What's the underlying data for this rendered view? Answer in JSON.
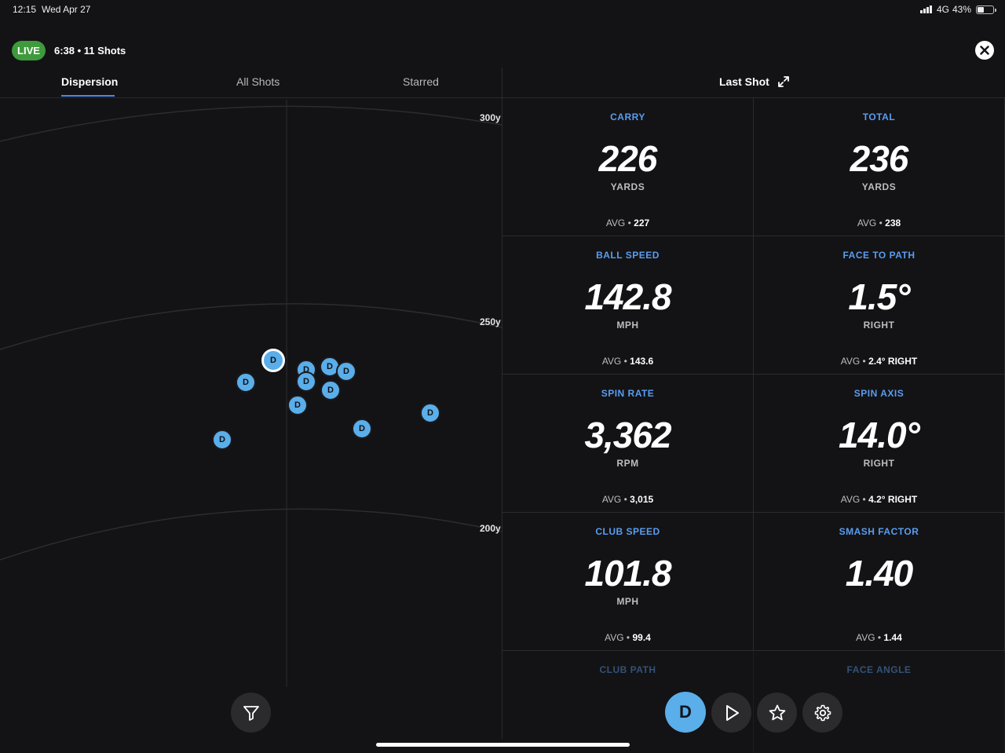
{
  "status_bar": {
    "time": "12:15",
    "date": "Wed Apr 27",
    "network": "4G",
    "battery_text": "43%",
    "battery_level": 0.43
  },
  "session": {
    "live_label": "LIVE",
    "info": "6:38 • 11 Shots",
    "live_color": "#3e9a3c"
  },
  "tabs": [
    {
      "label": "Dispersion",
      "active": true
    },
    {
      "label": "All Shots",
      "active": false
    },
    {
      "label": "Starred",
      "active": false
    }
  ],
  "last_shot": {
    "title": "Last Shot",
    "expand_icon": "expand-icon"
  },
  "dispersion": {
    "range_labels": [
      "300y",
      "250y",
      "200y"
    ],
    "shot_label": "D",
    "shot_color": "#5aaeea",
    "shot_count": 11
  },
  "metrics": [
    {
      "label": "CARRY",
      "value": "226",
      "unit": "YARDS",
      "avg_prefix": "AVG •",
      "avg": "227"
    },
    {
      "label": "TOTAL",
      "value": "236",
      "unit": "YARDS",
      "avg_prefix": "AVG •",
      "avg": "238"
    },
    {
      "label": "BALL SPEED",
      "value": "142.8",
      "unit": "MPH",
      "avg_prefix": "AVG •",
      "avg": "143.6"
    },
    {
      "label": "FACE TO PATH",
      "value": "1.5°",
      "unit": "RIGHT",
      "avg_prefix": "AVG •",
      "avg": "2.4° RIGHT"
    },
    {
      "label": "SPIN RATE",
      "value": "3,362",
      "unit": "RPM",
      "avg_prefix": "AVG •",
      "avg": "3,015"
    },
    {
      "label": "SPIN AXIS",
      "value": "14.0°",
      "unit": "RIGHT",
      "avg_prefix": "AVG •",
      "avg": "4.2° RIGHT"
    },
    {
      "label": "CLUB SPEED",
      "value": "101.8",
      "unit": "MPH",
      "avg_prefix": "AVG •",
      "avg": "99.4"
    },
    {
      "label": "SMASH FACTOR",
      "value": "1.40",
      "unit": "",
      "avg_prefix": "AVG •",
      "avg": "1.44"
    },
    {
      "label": "CLUB PATH",
      "value": "",
      "unit": "",
      "avg_prefix": "",
      "avg": ""
    },
    {
      "label": "FACE ANGLE",
      "value": "",
      "unit": "",
      "avg_prefix": "",
      "avg": ""
    }
  ],
  "controls": {
    "club_label": "D",
    "club_color": "#5aaeea",
    "icons": [
      "filter-icon",
      "play-icon",
      "star-icon",
      "gear-icon",
      "close-icon"
    ]
  }
}
